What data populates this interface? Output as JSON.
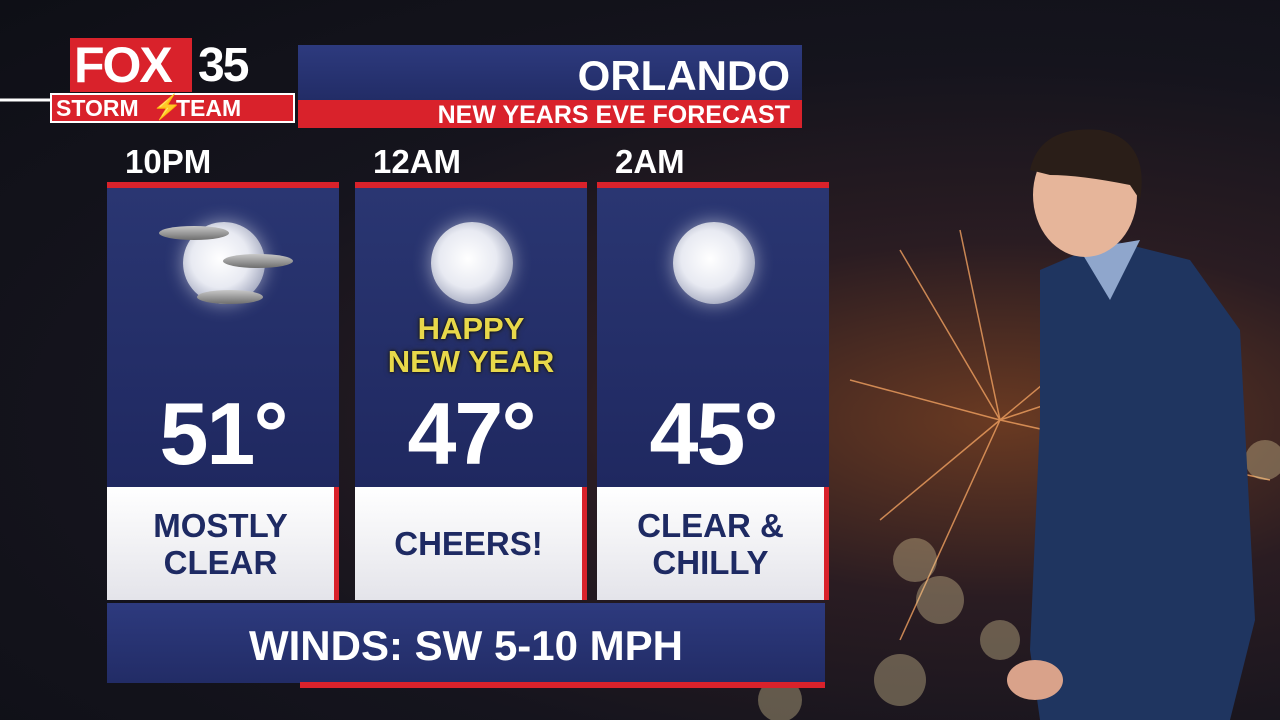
{
  "logo": {
    "brand": "FOX",
    "channel": "35",
    "team_left": "STORM",
    "team_right": "TEAM"
  },
  "header": {
    "title": "ORLANDO",
    "subtitle": "NEW YEARS EVE FORECAST"
  },
  "columns": [
    {
      "time": "10PM",
      "temperature": "51°",
      "condition": [
        "MOSTLY",
        "CLEAR"
      ]
    },
    {
      "time": "12AM",
      "temperature": "47°",
      "condition": [
        "CHEERS!"
      ],
      "overlay": [
        "HAPPY",
        "NEW YEAR"
      ]
    },
    {
      "time": "2AM",
      "temperature": "45°",
      "condition": [
        "CLEAR &",
        "CHILLY"
      ]
    }
  ],
  "footer": {
    "winds": "WINDS: SW 5-10 MPH"
  }
}
